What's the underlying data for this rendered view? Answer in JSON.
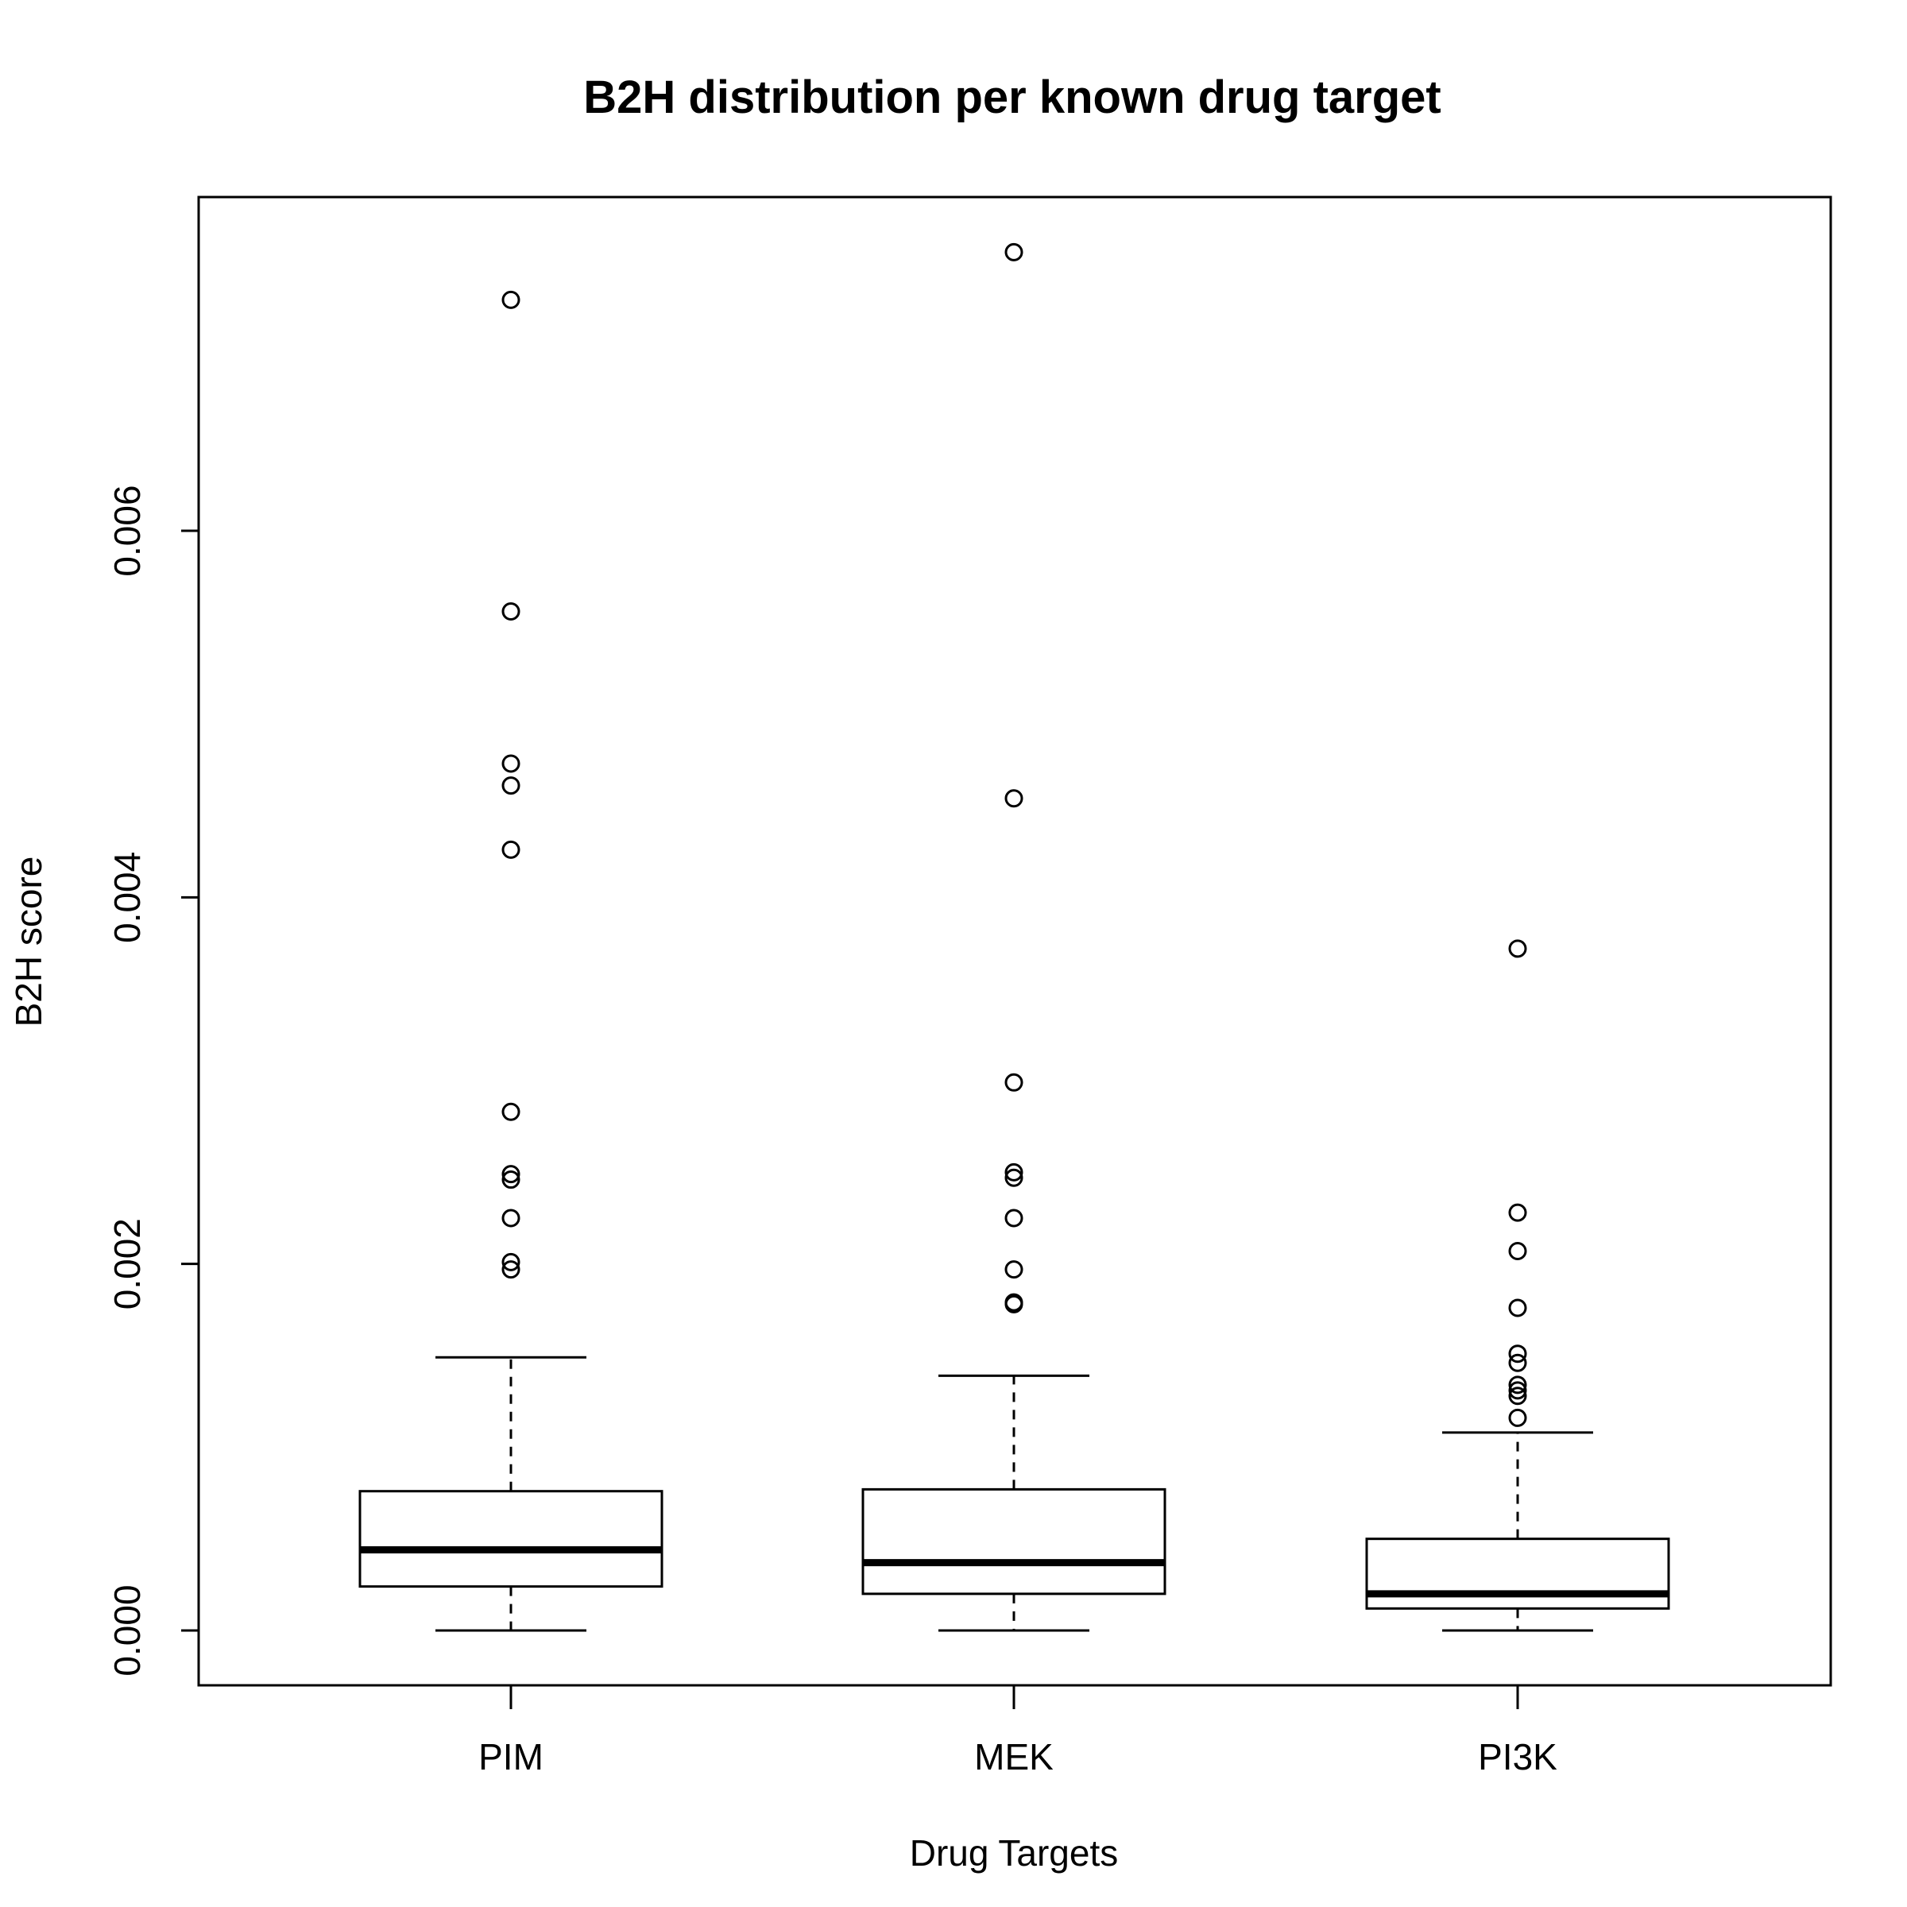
{
  "chart_data": {
    "type": "box",
    "title": "B2H distribution per known drug target",
    "xlabel": "Drug Targets",
    "ylabel": "B2H score",
    "categories": [
      "PIM",
      "MEK",
      "PI3K"
    ],
    "y_ticks": [
      0.0,
      0.002,
      0.004,
      0.006
    ],
    "y_tick_labels": [
      "0.000",
      "0.002",
      "0.004",
      "0.006"
    ],
    "ylim": [
      -0.0003,
      0.0078
    ],
    "grid": false,
    "boxes": [
      {
        "name": "PIM",
        "whisker_low": 0.0,
        "q1": 0.00024,
        "median": 0.00044,
        "q3": 0.00076,
        "whisker_high": 0.00149,
        "outliers": [
          0.00726,
          0.00556,
          0.00473,
          0.00461,
          0.00426,
          0.00283,
          0.00249,
          0.00246,
          0.00225,
          0.00201,
          0.00197
        ]
      },
      {
        "name": "MEK",
        "whisker_low": 0.0,
        "q1": 0.0002,
        "median": 0.00037,
        "q3": 0.00077,
        "whisker_high": 0.00139,
        "outliers": [
          0.00752,
          0.00454,
          0.00299,
          0.0025,
          0.00247,
          0.00225,
          0.00197,
          0.00179,
          0.00178
        ]
      },
      {
        "name": "PI3K",
        "whisker_low": 0.0,
        "q1": 0.00012,
        "median": 0.0002,
        "q3": 0.0005,
        "whisker_high": 0.00108,
        "outliers": [
          0.00372,
          0.00228,
          0.00207,
          0.00176,
          0.00151,
          0.00146,
          0.00134,
          0.00131,
          0.00128,
          0.00116
        ]
      }
    ]
  }
}
